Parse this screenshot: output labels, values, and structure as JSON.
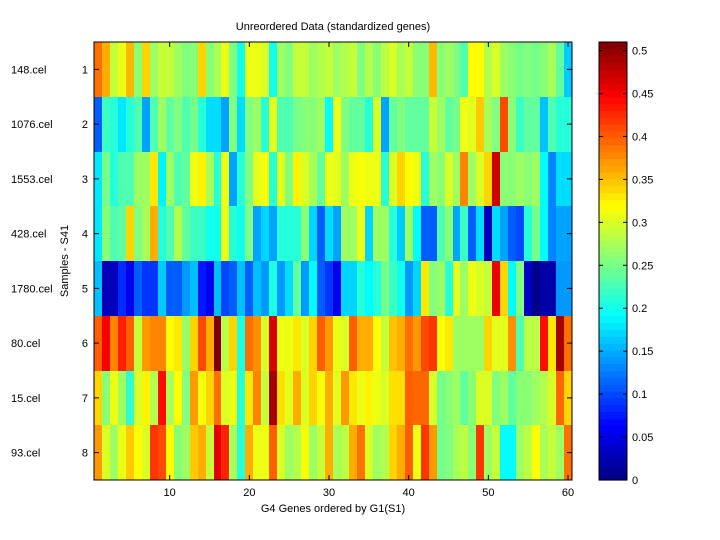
{
  "chart_data": {
    "type": "heatmap",
    "title": "Unreordered Data (standardized genes)",
    "xlabel": "G4 Genes ordered by G1(S1)",
    "ylabel": "Samples - S41",
    "x_ticks": [
      10,
      20,
      30,
      40,
      50,
      60
    ],
    "xlim": [
      0.5,
      60.5
    ],
    "y_ticks": [
      1,
      2,
      3,
      4,
      5,
      6,
      7,
      8
    ],
    "row_names": [
      "148.cel",
      "1076.cel",
      "1553.cel",
      "428.cel",
      "1780.cel",
      "80.cel",
      "15.cel",
      "93.cel"
    ],
    "colormap": "jet",
    "colorbar": {
      "range": [
        0,
        0.51
      ],
      "ticks": [
        "0",
        "0.05",
        "0.1",
        "0.15",
        "0.2",
        "0.25",
        "0.3",
        "0.35",
        "0.4",
        "0.45",
        "0.5"
      ],
      "tick_values": [
        0,
        0.05,
        0.1,
        0.15,
        0.2,
        0.25,
        0.3,
        0.35,
        0.4,
        0.45,
        0.5
      ]
    },
    "values": [
      [
        0.39,
        0.36,
        0.29,
        0.31,
        0.355,
        0.26,
        0.34,
        0.27,
        0.29,
        0.29,
        0.27,
        0.255,
        0.26,
        0.34,
        0.26,
        0.275,
        0.31,
        0.255,
        0.2,
        0.31,
        0.31,
        0.3,
        0.2,
        0.27,
        0.255,
        0.29,
        0.29,
        0.27,
        0.28,
        0.29,
        0.27,
        0.28,
        0.29,
        0.255,
        0.28,
        0.26,
        0.285,
        0.3,
        0.275,
        0.29,
        0.26,
        0.26,
        0.355,
        0.26,
        0.27,
        0.255,
        0.23,
        0.32,
        0.32,
        0.28,
        0.3,
        0.27,
        0.26,
        0.25,
        0.255,
        0.25,
        0.26,
        0.275,
        0.24,
        0.165
      ],
      [
        0.11,
        0.22,
        0.21,
        0.18,
        0.21,
        0.23,
        0.145,
        0.23,
        0.27,
        0.24,
        0.255,
        0.23,
        0.25,
        0.21,
        0.175,
        0.175,
        0.145,
        0.255,
        0.175,
        0.255,
        0.27,
        0.21,
        0.305,
        0.23,
        0.23,
        0.25,
        0.26,
        0.26,
        0.27,
        0.19,
        0.31,
        0.255,
        0.24,
        0.24,
        0.21,
        0.3,
        0.145,
        0.24,
        0.255,
        0.24,
        0.24,
        0.24,
        0.29,
        0.27,
        0.24,
        0.25,
        0.31,
        0.305,
        0.345,
        0.275,
        0.255,
        0.41,
        0.26,
        0.22,
        0.24,
        0.24,
        0.16,
        0.23,
        0.21,
        0.21
      ],
      [
        0.18,
        0.25,
        0.21,
        0.23,
        0.23,
        0.27,
        0.27,
        0.33,
        0.185,
        0.27,
        0.23,
        0.24,
        0.31,
        0.325,
        0.275,
        0.21,
        0.31,
        0.145,
        0.21,
        0.255,
        0.305,
        0.315,
        0.21,
        0.305,
        0.255,
        0.325,
        0.3,
        0.275,
        0.24,
        0.31,
        0.305,
        0.27,
        0.31,
        0.315,
        0.31,
        0.31,
        0.21,
        0.3,
        0.34,
        0.32,
        0.31,
        0.21,
        0.27,
        0.26,
        0.3,
        0.27,
        0.38,
        0.27,
        0.3,
        0.34,
        0.47,
        0.26,
        0.26,
        0.27,
        0.26,
        0.27,
        0.19,
        0.13,
        0.175,
        0.175
      ],
      [
        0.18,
        0.26,
        0.23,
        0.24,
        0.34,
        0.255,
        0.275,
        0.36,
        0.21,
        0.23,
        0.28,
        0.24,
        0.22,
        0.22,
        0.2,
        0.2,
        0.31,
        0.21,
        0.2,
        0.255,
        0.145,
        0.17,
        0.145,
        0.21,
        0.21,
        0.21,
        0.26,
        0.17,
        0.11,
        0.175,
        0.145,
        0.27,
        0.27,
        0.31,
        0.17,
        0.27,
        0.27,
        0.21,
        0.165,
        0.27,
        0.19,
        0.11,
        0.11,
        0.23,
        0.26,
        0.145,
        0.22,
        0.11,
        0.175,
        0.03,
        0.175,
        0.145,
        0.11,
        0.1,
        0.21,
        0.25,
        0.19,
        0.13,
        0.145,
        0.145
      ],
      [
        0.16,
        0.03,
        0.03,
        0.085,
        0.055,
        0.11,
        0.09,
        0.09,
        0.165,
        0.11,
        0.11,
        0.14,
        0.16,
        0.075,
        0.055,
        0.16,
        0.1,
        0.11,
        0.16,
        0.11,
        0.16,
        0.14,
        0.205,
        0.14,
        0.175,
        0.24,
        0.14,
        0.19,
        0.11,
        0.09,
        0.055,
        0.17,
        0.17,
        0.21,
        0.19,
        0.21,
        0.25,
        0.22,
        0.2,
        0.14,
        0.17,
        0.33,
        0.255,
        0.27,
        0.21,
        0.305,
        0.27,
        0.31,
        0.3,
        0.29,
        0.455,
        0.34,
        0.19,
        0.255,
        0.035,
        0.005,
        0.02,
        0.02,
        0.14,
        0.14
      ],
      [
        0.4,
        0.45,
        0.38,
        0.43,
        0.4,
        0.29,
        0.37,
        0.38,
        0.38,
        0.32,
        0.33,
        0.265,
        0.34,
        0.41,
        0.36,
        0.51,
        0.285,
        0.34,
        0.205,
        0.39,
        0.375,
        0.3,
        0.465,
        0.31,
        0.31,
        0.33,
        0.3,
        0.34,
        0.4,
        0.37,
        0.31,
        0.3,
        0.4,
        0.36,
        0.36,
        0.32,
        0.29,
        0.35,
        0.36,
        0.39,
        0.37,
        0.41,
        0.42,
        0.315,
        0.33,
        0.27,
        0.27,
        0.27,
        0.27,
        0.34,
        0.305,
        0.305,
        0.375,
        0.23,
        0.285,
        0.285,
        0.44,
        0.33,
        0.49,
        0.39
      ],
      [
        0.34,
        0.26,
        0.31,
        0.27,
        0.215,
        0.3,
        0.325,
        0.28,
        0.44,
        0.275,
        0.32,
        0.255,
        0.37,
        0.315,
        0.34,
        0.39,
        0.3,
        0.31,
        0.21,
        0.33,
        0.38,
        0.29,
        0.49,
        0.335,
        0.305,
        0.36,
        0.3,
        0.34,
        0.315,
        0.36,
        0.305,
        0.37,
        0.33,
        0.31,
        0.325,
        0.31,
        0.3,
        0.335,
        0.335,
        0.4,
        0.395,
        0.395,
        0.3,
        0.25,
        0.26,
        0.27,
        0.24,
        0.26,
        0.3,
        0.3,
        0.255,
        0.27,
        0.24,
        0.26,
        0.26,
        0.27,
        0.28,
        0.3,
        0.395,
        0.34
      ],
      [
        0.37,
        0.3,
        0.27,
        0.31,
        0.345,
        0.32,
        0.3,
        0.42,
        0.41,
        0.32,
        0.26,
        0.27,
        0.345,
        0.36,
        0.29,
        0.46,
        0.43,
        0.275,
        0.21,
        0.36,
        0.31,
        0.31,
        0.4,
        0.3,
        0.27,
        0.28,
        0.315,
        0.27,
        0.29,
        0.36,
        0.275,
        0.285,
        0.36,
        0.39,
        0.3,
        0.27,
        0.28,
        0.34,
        0.36,
        0.4,
        0.31,
        0.42,
        0.37,
        0.25,
        0.255,
        0.275,
        0.285,
        0.26,
        0.42,
        0.27,
        0.29,
        0.19,
        0.19,
        0.27,
        0.285,
        0.32,
        0.275,
        0.29,
        0.27,
        0.39
      ]
    ]
  }
}
